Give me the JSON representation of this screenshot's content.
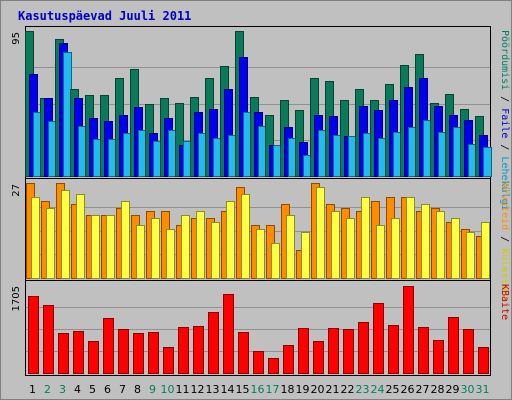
{
  "chart_data": {
    "type": "bar",
    "title": "Kasutuspäevad Juuli 2011",
    "colors": {
      "background": "#c0c0c0",
      "frame": "#808080",
      "title": "#0000cc",
      "grid": "#909090",
      "hits": "#0a7a5a",
      "files": "#0000ee",
      "pages": "#22bbee",
      "visits": "#ff8c00",
      "sites": "#ffff44",
      "kbytes": "#ff0000",
      "weekend_label": "#008060",
      "weekday_label": "#000000"
    },
    "x": [
      1,
      2,
      3,
      4,
      5,
      6,
      7,
      8,
      9,
      10,
      11,
      12,
      13,
      14,
      15,
      16,
      17,
      18,
      19,
      20,
      21,
      22,
      23,
      24,
      25,
      26,
      27,
      28,
      29,
      30,
      31
    ],
    "weekend_days": [
      2,
      3,
      9,
      10,
      16,
      17,
      23,
      24,
      30,
      31
    ],
    "panels": [
      {
        "ymax_label": "95",
        "ymax": 95,
        "right_label_parts": [
          {
            "text": "Pöördumisi",
            "color": "#008060"
          },
          {
            "text": " / ",
            "color": "#000000"
          },
          {
            "text": "Faile",
            "color": "#0000cc"
          },
          {
            "text": " / ",
            "color": "#000000"
          },
          {
            "text": "Lehekülgi",
            "color": "#0099cc"
          }
        ],
        "series": [
          {
            "name": "Pöördumisi",
            "color": "#0a7a5a",
            "values": [
              95,
              51,
              90,
              57,
              53,
              53,
              64,
              70,
              47,
              51,
              48,
              52,
              64,
              72,
              95,
              52,
              40,
              50,
              43,
              64,
              62,
              50,
              57,
              50,
              60,
              73,
              80,
              48,
              54,
              44,
              39
            ]
          },
          {
            "name": "Faile",
            "color": "#0000ee",
            "values": [
              67,
              51,
              87,
              51,
              38,
              36,
              40,
              45,
              28,
              38,
              20,
              42,
              44,
              57,
              78,
              42,
              20,
              32,
              22,
              40,
              39,
              26,
              46,
              43,
              50,
              58,
              64,
              46,
              40,
              37,
              27
            ]
          },
          {
            "name": "Lehekülgi",
            "color": "#22bbee",
            "values": [
              42,
              36,
              81,
              33,
              24,
              24,
              28,
              30,
              23,
              30,
              23,
              28,
              25,
              27,
              42,
              33,
              20,
              25,
              14,
              30,
              27,
              26,
              28,
              25,
              29,
              32,
              37,
              29,
              32,
              21,
              19
            ]
          }
        ]
      },
      {
        "ymax_label": "27",
        "ymax": 27,
        "right_label_parts": [
          {
            "text": "Arvuteid",
            "color": "#ff8c00"
          },
          {
            "text": " / ",
            "color": "#000000"
          },
          {
            "text": "Külastusi",
            "color": "#cccc00"
          }
        ],
        "series": [
          {
            "name": "Külastusi",
            "color": "#ff8c00",
            "values": [
              27,
              22,
              27,
              21,
              18,
              18,
              20,
              18,
              19,
              19,
              15,
              17,
              17,
              19,
              26,
              15,
              15,
              21,
              8,
              27,
              21,
              20,
              19,
              22,
              23,
              23,
              19,
              20,
              16,
              14,
              12
            ]
          },
          {
            "name": "Arvuteid",
            "color": "#ffff44",
            "values": [
              23,
              20,
              25,
              24,
              18,
              18,
              22,
              15,
              17,
              14,
              18,
              19,
              16,
              22,
              24,
              14,
              10,
              18,
              13,
              26,
              19,
              17,
              23,
              15,
              17,
              23,
              21,
              19,
              17,
              13,
              16
            ]
          }
        ]
      },
      {
        "ymax_label": "1705",
        "ymax": 1705,
        "right_label_parts": [
          {
            "text": "KBaite",
            "color": "#cc0000"
          }
        ],
        "series": [
          {
            "name": "KBaite",
            "color": "#ff0000",
            "values": [
              1490,
              1310,
              780,
              810,
              620,
              1060,
              850,
              780,
              790,
              500,
              890,
              910,
              1180,
              1530,
              800,
              420,
              300,
              540,
              880,
              620,
              880,
              860,
              980,
              1350,
              930,
              1690,
              890,
              630,
              1080,
              860,
              510
            ]
          }
        ]
      }
    ]
  }
}
